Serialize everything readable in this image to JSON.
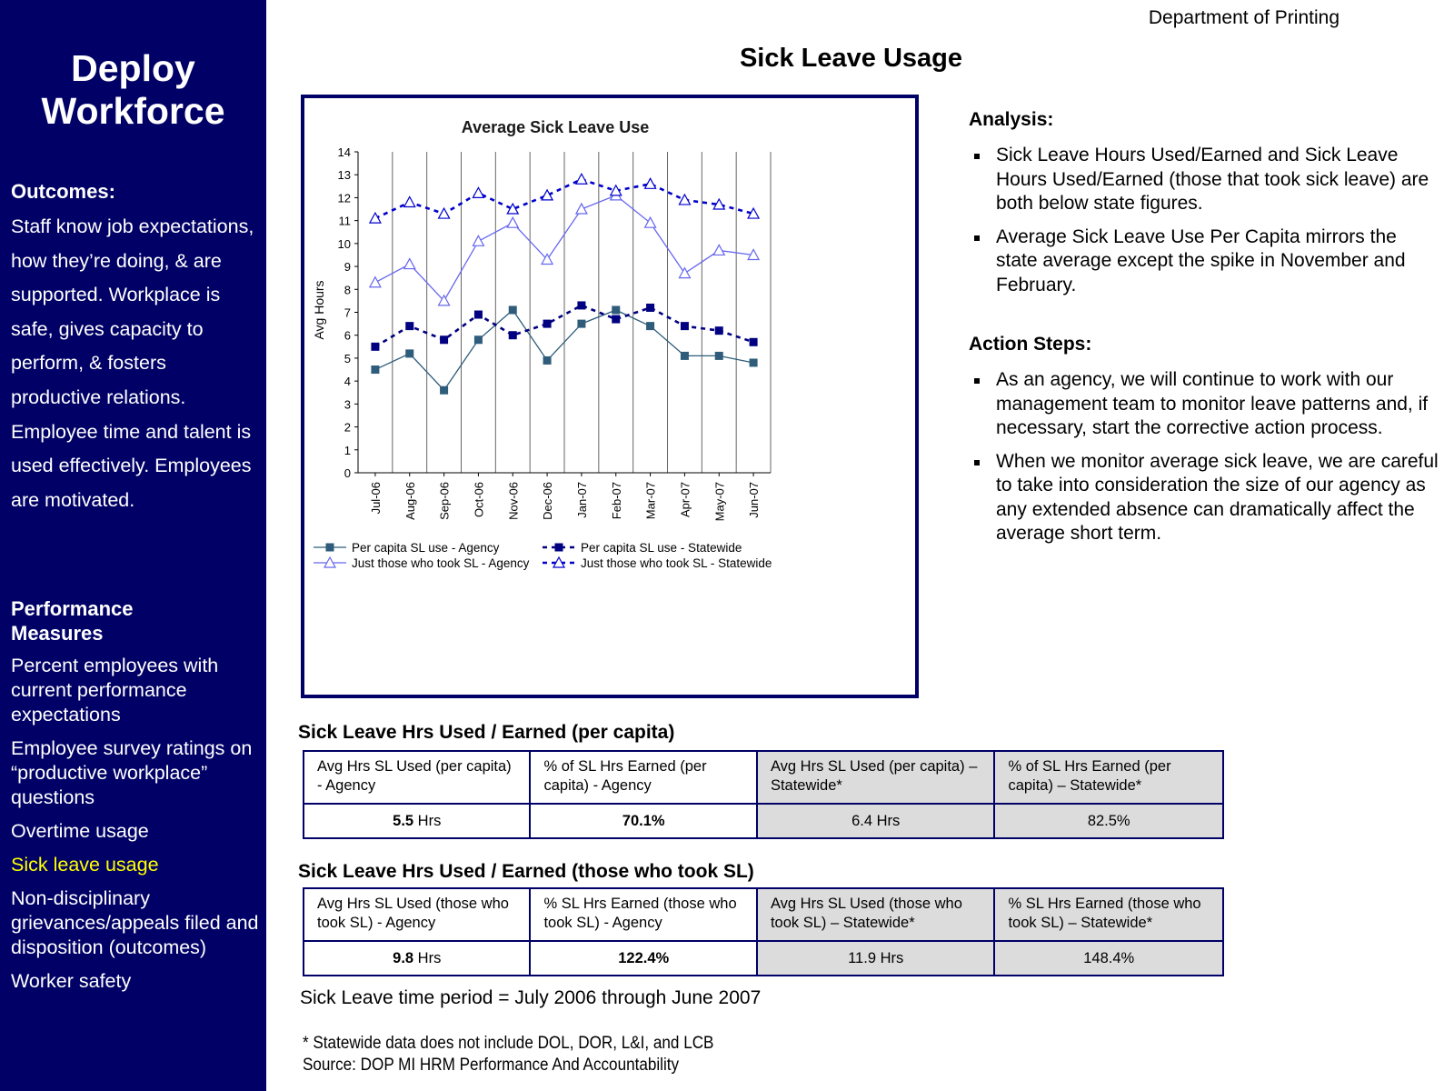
{
  "sidebar": {
    "title_line1": "Deploy",
    "title_line2": "Workforce",
    "outcomes_heading": "Outcomes:",
    "outcomes_text": "Staff know job expectations, how they’re doing, & are supported. Workplace is safe, gives capacity to perform, & fosters productive relations. Employee time and talent is used effectively. Employees are motivated.",
    "measures_heading_line1": "Performance",
    "measures_heading_line2": "Measures",
    "measures": [
      "Percent employees with current performance expectations",
      "Employee survey ratings on “productive workplace” questions",
      "Overtime usage",
      "Sick leave usage",
      "Non-disciplinary grievances/appeals filed and disposition (outcomes)",
      "Worker safety"
    ],
    "active_measure": "Sick leave usage",
    "colors": {
      "background": "#000066",
      "active": "#ffff00"
    }
  },
  "header": {
    "department": "Department of Printing",
    "title": "Sick Leave Usage"
  },
  "analysis": {
    "heading": "Analysis:",
    "bullets": [
      "Sick Leave Hours Used/Earned and Sick Leave Hours Used/Earned (those that took sick leave) are both below state figures.",
      "Average Sick Leave Use Per Capita mirrors the state average except the spike in November and February."
    ],
    "action_heading": "Action Steps:",
    "action_bullets": [
      "As an agency, we will continue to work with our management team to monitor leave patterns and, if necessary, start the corrective action process.",
      "When we monitor average sick leave, we are careful to take into consideration the size of our agency as any extended absence can dramatically affect the average short term."
    ]
  },
  "chart_data": {
    "type": "line",
    "title": "Average Sick Leave Use",
    "xlabel": "",
    "ylabel": "Avg Hours",
    "ylim": [
      0,
      14
    ],
    "yticks": [
      "0",
      "1",
      "2",
      "3",
      "4",
      "5",
      "6",
      "7",
      "8",
      "9",
      "10",
      "11",
      "12",
      "13",
      "14"
    ],
    "categories": [
      "Jul-06",
      "Aug-06",
      "Sep-06",
      "Oct-06",
      "Nov-06",
      "Dec-06",
      "Jan-07",
      "Feb-07",
      "Mar-07",
      "Apr-07",
      "May-07",
      "Jun-07"
    ],
    "grid": "vertical",
    "legend_position": "bottom",
    "series": [
      {
        "name": "Per capita SL use - Agency",
        "values": [
          4.5,
          5.2,
          3.6,
          5.8,
          7.1,
          4.9,
          6.5,
          7.1,
          6.4,
          5.1,
          5.1,
          4.8
        ],
        "color": "#2e5c7a",
        "style": "solid",
        "marker": "square"
      },
      {
        "name": "Per capita SL use - Statewide",
        "values": [
          5.5,
          6.4,
          5.8,
          6.9,
          6.0,
          6.5,
          7.3,
          6.7,
          7.2,
          6.4,
          6.2,
          5.7
        ],
        "color": "#000080",
        "style": "dashed",
        "marker": "square"
      },
      {
        "name": "Just those who took SL - Agency",
        "values": [
          8.3,
          9.1,
          7.5,
          10.1,
          10.9,
          9.3,
          11.5,
          12.1,
          10.9,
          8.7,
          9.7,
          9.5
        ],
        "color": "#6666ee",
        "style": "solid",
        "marker": "triangle"
      },
      {
        "name": "Just those who took SL - Statewide",
        "values": [
          11.1,
          11.8,
          11.3,
          12.2,
          11.5,
          12.1,
          12.8,
          12.3,
          12.6,
          11.9,
          11.7,
          11.3
        ],
        "color": "#0000cc",
        "style": "dashed",
        "marker": "triangle"
      }
    ]
  },
  "table1": {
    "caption": "Sick Leave Hrs Used / Earned (per capita)",
    "headers": [
      "Avg Hrs SL Used (per capita) - Agency",
      "% of SL Hrs Earned (per capita) - Agency",
      "Avg Hrs SL Used (per capita) – Statewide*",
      "% of SL Hrs Earned (per capita) – Statewide*"
    ],
    "v1_num": "5.5",
    "v1_unit": " Hrs",
    "v2": "70.1%",
    "v3": "6.4 Hrs",
    "v4": "82.5%"
  },
  "table2": {
    "caption": "Sick Leave Hrs Used / Earned (those who took SL)",
    "headers": [
      "Avg Hrs SL Used (those who took SL) - Agency",
      "% SL Hrs Earned (those who took SL) - Agency",
      "Avg Hrs SL Used (those who took SL) – Statewide*",
      "% SL Hrs Earned (those who took SL) – Statewide*"
    ],
    "v1_num": "9.8",
    "v1_unit": " Hrs",
    "v2": "122.4%",
    "v3": "11.9 Hrs",
    "v4": "148.4%"
  },
  "footer": {
    "period": "Sick Leave time period = July 2006 through June 2007",
    "note": "* Statewide data does not include DOL, DOR, L&I, and LCB",
    "source": "Source:  DOP MI HRM Performance And Accountability"
  }
}
